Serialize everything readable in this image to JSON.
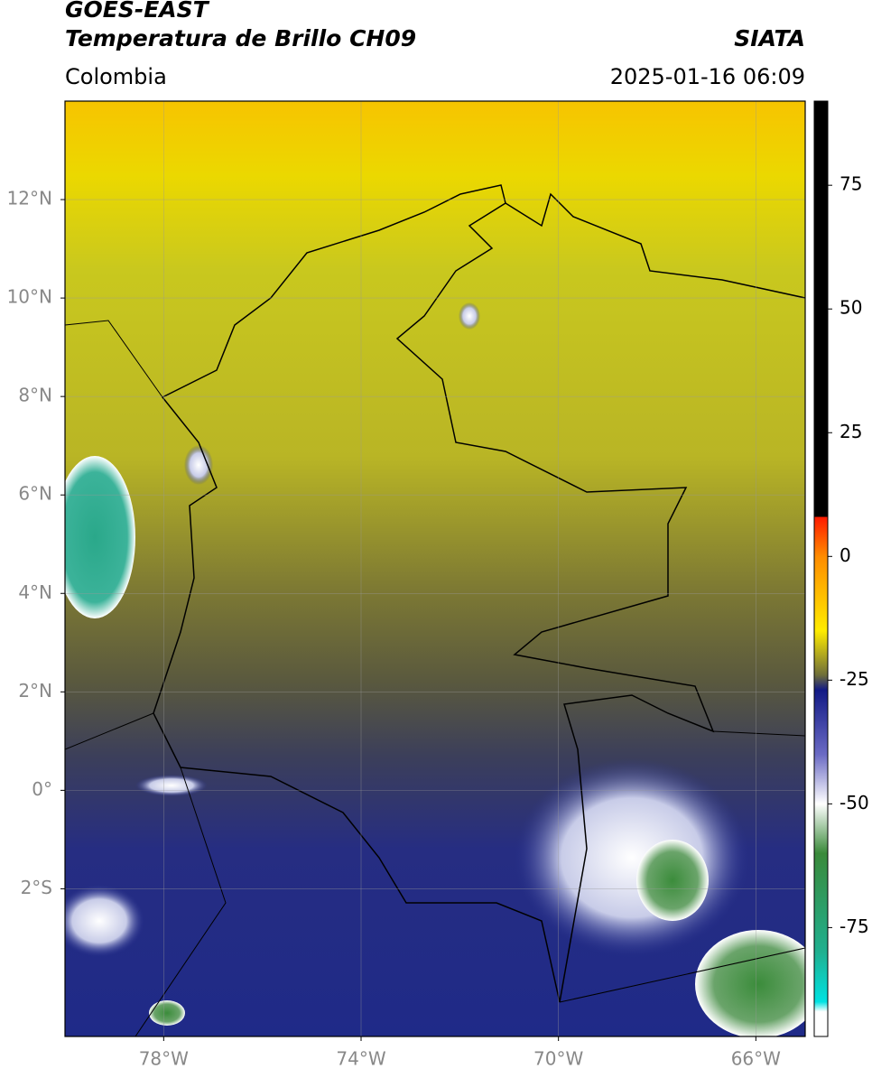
{
  "header": {
    "title_line1": "GOES-EAST",
    "title_line2": "Temperatura de Brillo CH09",
    "region": "Colombia",
    "source": "SIATA",
    "datetime": "2025-01-16 06:09"
  },
  "map": {
    "xlim": [
      -80,
      -65
    ],
    "ylim": [
      -5,
      14
    ],
    "yticks": [
      {
        "value": 12,
        "label": "12°N"
      },
      {
        "value": 10,
        "label": "10°N"
      },
      {
        "value": 8,
        "label": "8°N"
      },
      {
        "value": 6,
        "label": "6°N"
      },
      {
        "value": 4,
        "label": "4°N"
      },
      {
        "value": 2,
        "label": "2°N"
      },
      {
        "value": 0,
        "label": "0°"
      },
      {
        "value": -2,
        "label": "2°S"
      }
    ],
    "xticks": [
      {
        "value": -78,
        "label": "78°W"
      },
      {
        "value": -74,
        "label": "74°W"
      },
      {
        "value": -70,
        "label": "70°W"
      },
      {
        "value": -66,
        "label": "66°W"
      }
    ]
  },
  "colorbar": {
    "lim": [
      -97,
      92
    ],
    "ticks": [
      75,
      50,
      25,
      0,
      -25,
      -50,
      -75
    ],
    "stops": [
      {
        "value": 92,
        "color": "#000000"
      },
      {
        "value": 8,
        "color": "#000000"
      },
      {
        "value": 8,
        "color": "#ff1a00"
      },
      {
        "value": 0,
        "color": "#ff8c00"
      },
      {
        "value": -15,
        "color": "#ffec00"
      },
      {
        "value": -24,
        "color": "#6e6e3a"
      },
      {
        "value": -27,
        "color": "#121a85"
      },
      {
        "value": -40,
        "color": "#6a6ac4"
      },
      {
        "value": -50,
        "color": "#ffffff"
      },
      {
        "value": -60,
        "color": "#3a8a3a"
      },
      {
        "value": -80,
        "color": "#20b090"
      },
      {
        "value": -90,
        "color": "#00e2e2"
      },
      {
        "value": -92,
        "color": "#ffffff"
      },
      {
        "value": -97,
        "color": "#ffffff"
      }
    ]
  }
}
